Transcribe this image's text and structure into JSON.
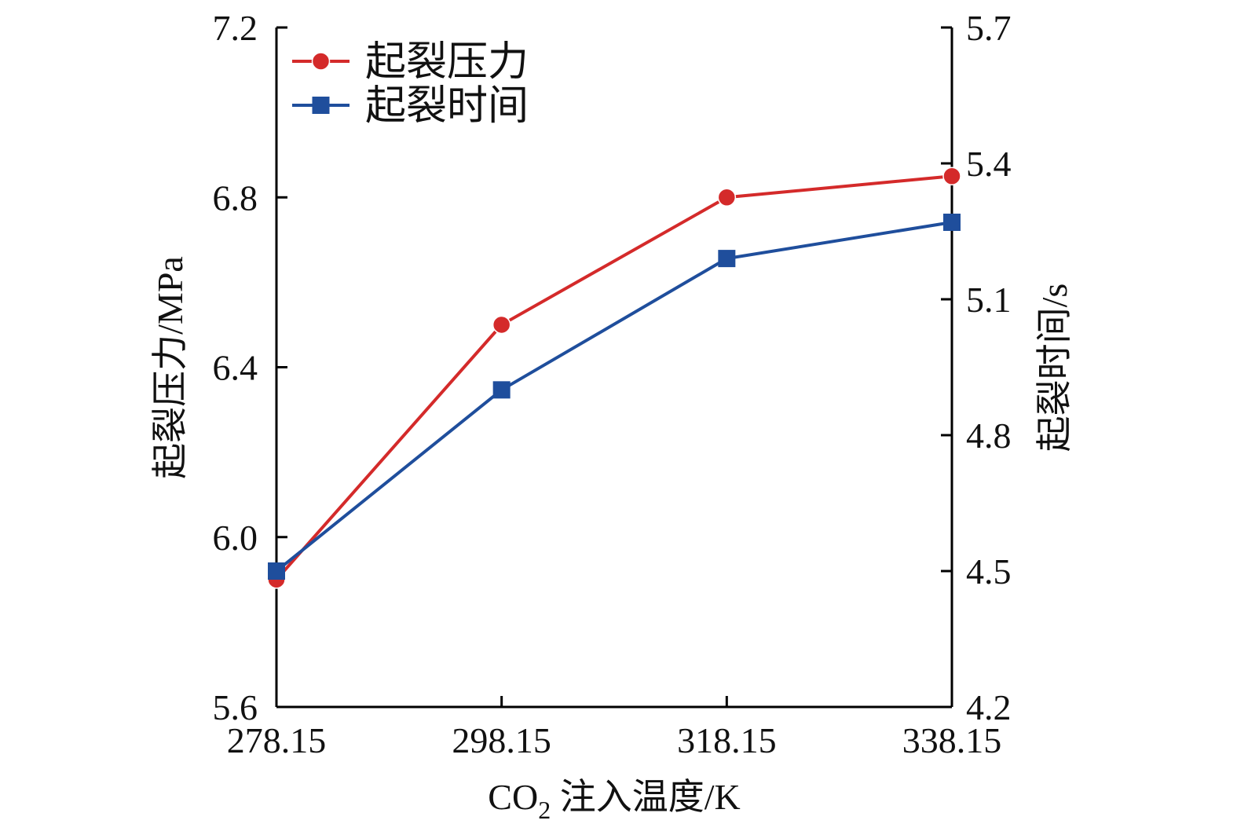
{
  "chart_data": {
    "type": "line",
    "x": [
      278.15,
      298.15,
      318.15,
      338.15
    ],
    "x_tick_labels": [
      "278.15",
      "298.15",
      "318.15",
      "338.15"
    ],
    "xlim": [
      278.15,
      338.15
    ],
    "xlabel": {
      "main": "CO",
      "subscript": "2",
      "rest": " 注入温度/K"
    },
    "y_left": {
      "label": "起裂压力/MPa",
      "ylim": [
        5.6,
        7.2
      ],
      "ticks": [
        5.6,
        6.0,
        6.4,
        6.8,
        7.2
      ],
      "tick_labels": [
        "5.6",
        "6.0",
        "6.4",
        "6.8",
        "7.2"
      ]
    },
    "y_right": {
      "label": "起裂时间/s",
      "ylim": [
        4.2,
        5.7
      ],
      "ticks": [
        4.2,
        4.5,
        4.8,
        5.1,
        5.4,
        5.7
      ],
      "tick_labels": [
        "4.2",
        "4.5",
        "4.8",
        "5.1",
        "5.4",
        "5.7"
      ]
    },
    "series": [
      {
        "name": "起裂压力",
        "axis": "left",
        "marker": "circle",
        "color": "#d42a2a",
        "values": [
          5.9,
          6.5,
          6.8,
          6.85
        ]
      },
      {
        "name": "起裂时间",
        "axis": "right",
        "marker": "square",
        "color": "#1f4e9c",
        "values": [
          4.5,
          4.9,
          5.19,
          5.27
        ]
      }
    ],
    "legend_position": "top-left",
    "grid": false
  }
}
